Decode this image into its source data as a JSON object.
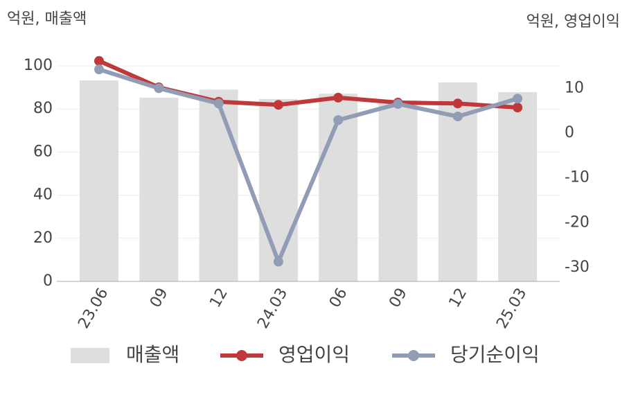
{
  "chart_data": {
    "type": "bar-line",
    "y_label": "억원, 매출액",
    "y2_label": "억원, 영업이익",
    "categories": [
      "23.06",
      "09",
      "12",
      "24.03",
      "06",
      "09",
      "12",
      "25.03"
    ],
    "ylim": [
      0,
      100
    ],
    "yticks": [
      0,
      20,
      40,
      60,
      80,
      100
    ],
    "y2lim": [
      -33.1,
      15
    ],
    "y2ticks": [
      -30,
      -20,
      -10,
      0,
      10
    ],
    "grid": true,
    "series": [
      {
        "name": "매출액",
        "type": "bar",
        "color": "#dedede",
        "values": [
          93.2,
          85.2,
          89,
          84.6,
          87.1,
          83.9,
          92.3,
          87.8
        ]
      },
      {
        "name": "영업이익",
        "type": "line",
        "axis": "y2",
        "color": "#c0393a",
        "values": [
          16.1,
          10.2,
          7.0,
          6.3,
          7.9,
          6.8,
          6.6,
          5.7
        ]
      },
      {
        "name": "당기순이익",
        "type": "line",
        "axis": "y2",
        "color": "#919db5",
        "values": [
          14.2,
          10.0,
          6.6,
          -28.7,
          2.9,
          6.5,
          3.7,
          7.7
        ]
      }
    ]
  }
}
